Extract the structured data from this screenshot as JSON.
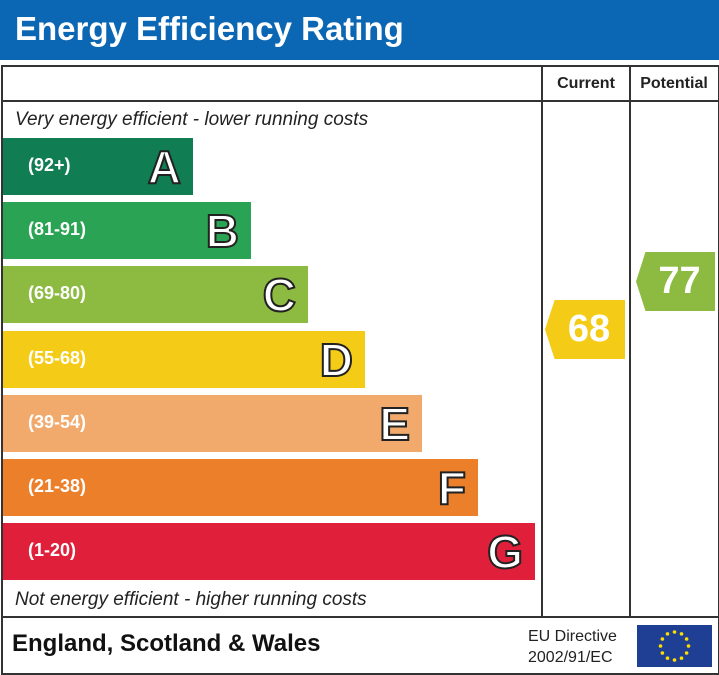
{
  "title": "Energy Efficiency Rating",
  "columns": {
    "current": "Current",
    "potential": "Potential"
  },
  "top_note": "Very energy efficient - lower running costs",
  "bottom_note": "Not energy efficient - higher running costs",
  "footer": {
    "region": "England, Scotland & Wales",
    "directive_line1": "EU Directive",
    "directive_line2": "2002/91/EC",
    "flag_icon": "eu-flag-icon"
  },
  "chart_data": {
    "type": "bar",
    "title": "Energy Efficiency Rating",
    "categories": [
      "A",
      "B",
      "C",
      "D",
      "E",
      "F",
      "G"
    ],
    "ranges": [
      "(92+)",
      "(81-91)",
      "(69-80)",
      "(55-68)",
      "(39-54)",
      "(21-38)",
      "(1-20)"
    ],
    "band_min": [
      92,
      81,
      69,
      55,
      39,
      21,
      1
    ],
    "colors": [
      "#107d53",
      "#2aa354",
      "#8dbb42",
      "#f4cc17",
      "#f1a96c",
      "#eb7f2a",
      "#e01f3b"
    ],
    "current": {
      "value": 68,
      "label": "68",
      "band": "D",
      "color": "#f4cc17"
    },
    "potential": {
      "value": 77,
      "label": "77",
      "band": "C",
      "color": "#8dbb42"
    }
  }
}
